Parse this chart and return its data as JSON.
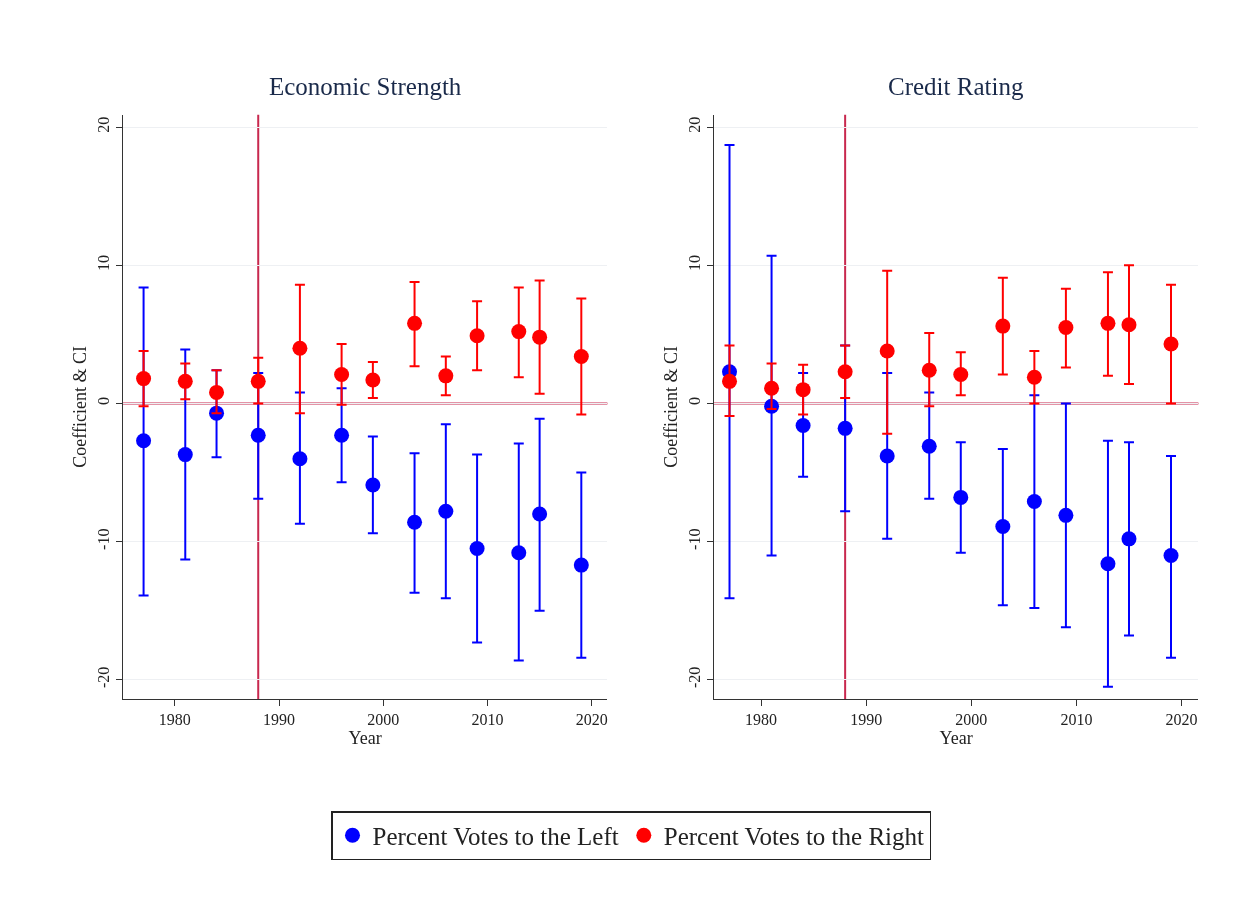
{
  "chart_data": [
    {
      "type": "scatter",
      "title": "Economic Strength",
      "xlabel": "Year",
      "ylabel": "Coefficient & CI",
      "marker": "circle",
      "grid": "y",
      "legend": "bottom",
      "x": [
        1977,
        1981,
        1984,
        1988,
        1992,
        1996,
        1999,
        2003,
        2006,
        2009,
        2013,
        2015,
        2019
      ],
      "xlim": [
        1975,
        2021.5
      ],
      "xticks": [
        1980,
        1990,
        2000,
        2010,
        2020
      ],
      "ylim": [
        -21.4,
        20.9
      ],
      "yticks": [
        -20,
        -10,
        0,
        10,
        20
      ],
      "ref_lines": [
        {
          "axis": "y",
          "value": 0,
          "color": "#c8284e"
        },
        {
          "axis": "x",
          "value": 1988,
          "color": "#c8284e"
        }
      ],
      "series": [
        {
          "name": "Percent Votes to the Left",
          "color": "#0000ff",
          "values": [
            -2.7,
            -3.7,
            -0.7,
            -2.3,
            -4.0,
            -2.3,
            -5.9,
            -8.6,
            -7.8,
            -10.5,
            -10.8,
            -8.0,
            -11.7
          ],
          "errors": [
            [
              -13.9,
              8.4
            ],
            [
              -11.3,
              3.9
            ],
            [
              -3.9,
              2.4
            ],
            [
              -6.9,
              2.2
            ],
            [
              -8.7,
              0.8
            ],
            [
              -5.7,
              1.1
            ],
            [
              -9.4,
              -2.4
            ],
            [
              -13.7,
              -3.6
            ],
            [
              -14.1,
              -1.5
            ],
            [
              -17.3,
              -3.7
            ],
            [
              -18.6,
              -2.9
            ],
            [
              -15.0,
              -1.1
            ],
            [
              -18.4,
              -5.0
            ]
          ]
        },
        {
          "name": "Percent Votes to the Right",
          "color": "#ff0000",
          "values": [
            1.8,
            1.6,
            0.8,
            1.6,
            4.0,
            2.1,
            1.7,
            5.8,
            2.0,
            4.9,
            5.2,
            4.8,
            3.4
          ],
          "errors": [
            [
              -0.2,
              3.8
            ],
            [
              0.3,
              2.9
            ],
            [
              -0.7,
              2.4
            ],
            [
              0.0,
              3.3
            ],
            [
              -0.7,
              8.6
            ],
            [
              -0.1,
              4.3
            ],
            [
              0.4,
              3.0
            ],
            [
              2.7,
              8.8
            ],
            [
              0.6,
              3.4
            ],
            [
              2.4,
              7.4
            ],
            [
              1.9,
              8.4
            ],
            [
              0.7,
              8.9
            ],
            [
              -0.8,
              7.6
            ]
          ]
        }
      ]
    },
    {
      "type": "scatter",
      "title": "Credit Rating",
      "xlabel": "Year",
      "ylabel": "Coefficient & CI",
      "marker": "circle",
      "grid": "y",
      "x": [
        1977,
        1981,
        1984,
        1988,
        1992,
        1996,
        1999,
        2003,
        2006,
        2009,
        2013,
        2015,
        2019
      ],
      "xlim": [
        1975.5,
        2021.6
      ],
      "xticks": [
        1980,
        1990,
        2000,
        2010,
        2020
      ],
      "ylim": [
        -21.4,
        20.9
      ],
      "yticks": [
        -20,
        -10,
        0,
        10,
        20
      ],
      "ref_lines": [
        {
          "axis": "y",
          "value": 0,
          "color": "#c8284e"
        },
        {
          "axis": "x",
          "value": 1988,
          "color": "#c8284e"
        }
      ],
      "series": [
        {
          "color": "#0000ff",
          "values": [
            2.3,
            -0.2,
            -1.6,
            -1.8,
            -3.8,
            -3.1,
            -6.8,
            -8.9,
            -7.1,
            -8.1,
            -11.6,
            -9.8,
            -11.0
          ],
          "errors": [
            [
              -14.1,
              18.7
            ],
            [
              -11.0,
              10.7
            ],
            [
              -5.3,
              2.2
            ],
            [
              -7.8,
              4.2
            ],
            [
              -9.8,
              2.2
            ],
            [
              -6.9,
              0.8
            ],
            [
              -10.8,
              -2.8
            ],
            [
              -14.6,
              -3.3
            ],
            [
              -14.8,
              0.6
            ],
            [
              -16.2,
              0.0
            ],
            [
              -20.5,
              -2.7
            ],
            [
              -16.8,
              -2.8
            ],
            [
              -18.4,
              -3.8
            ]
          ]
        },
        {
          "color": "#ff0000",
          "values": [
            1.6,
            1.1,
            1.0,
            2.3,
            3.8,
            2.4,
            2.1,
            5.6,
            1.9,
            5.5,
            5.8,
            5.7,
            4.3
          ],
          "errors": [
            [
              -0.9,
              4.2
            ],
            [
              -0.4,
              2.9
            ],
            [
              -0.8,
              2.8
            ],
            [
              0.4,
              4.2
            ],
            [
              -2.2,
              9.6
            ],
            [
              -0.2,
              5.1
            ],
            [
              0.6,
              3.7
            ],
            [
              2.1,
              9.1
            ],
            [
              0.0,
              3.8
            ],
            [
              2.6,
              8.3
            ],
            [
              2.0,
              9.5
            ],
            [
              1.4,
              10.0
            ],
            [
              0.0,
              8.6
            ]
          ]
        }
      ]
    }
  ]
}
